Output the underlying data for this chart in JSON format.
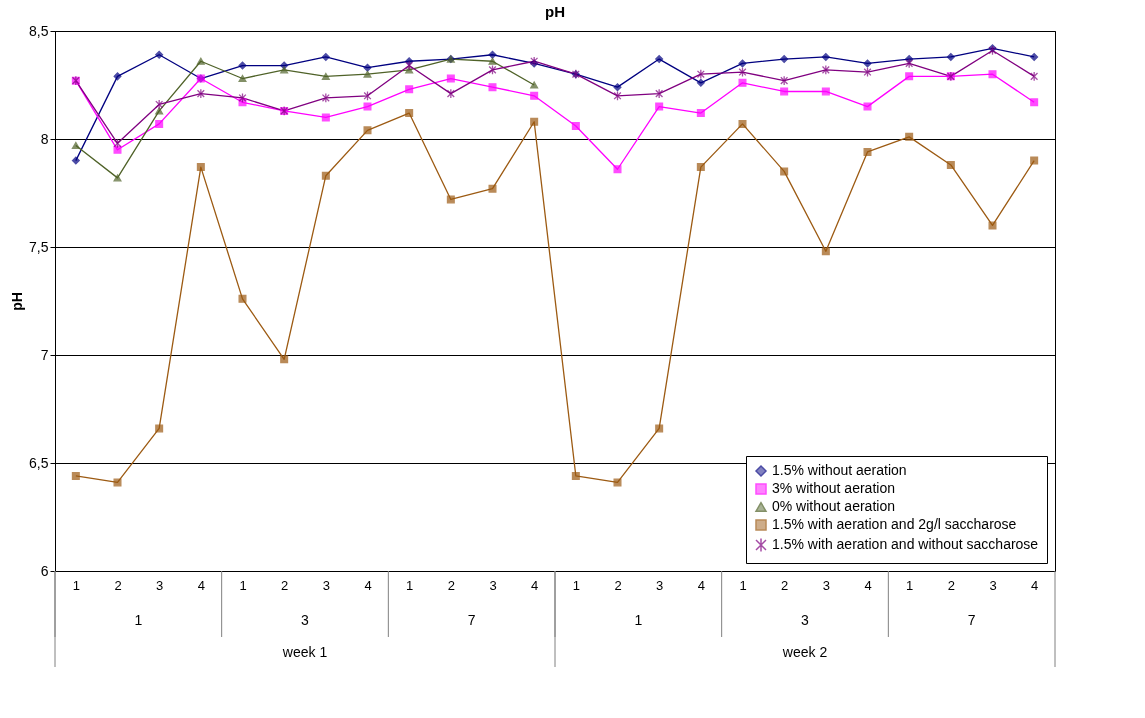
{
  "chart_data": {
    "type": "line",
    "title": "pH",
    "ylabel": "pH",
    "categories": [
      "1",
      "2",
      "3",
      "4",
      "1",
      "2",
      "3",
      "4",
      "1",
      "2",
      "3",
      "4",
      "1",
      "2",
      "3",
      "4",
      "1",
      "2",
      "3",
      "4",
      "1",
      "2",
      "3",
      "4"
    ],
    "annotations": [
      "1",
      "3",
      "7",
      "1",
      "3",
      "7",
      "week 1",
      "week 2"
    ],
    "series": [
      {
        "name": "1.5% without aeration",
        "color": "#000080",
        "marker": "diamond",
        "values": [
          7.9,
          8.29,
          8.39,
          8.28,
          8.34,
          8.34,
          8.38,
          8.33,
          8.36,
          8.37,
          8.39,
          8.35,
          8.3,
          8.24,
          8.37,
          8.26,
          8.35,
          8.37,
          8.38,
          8.35,
          8.37,
          8.38,
          8.42,
          8.38
        ]
      },
      {
        "name": "3% without aeration",
        "color": "#ff00ff",
        "marker": "square",
        "values": [
          8.27,
          7.95,
          8.07,
          8.28,
          8.17,
          8.13,
          8.1,
          8.15,
          8.23,
          8.28,
          8.24,
          8.2,
          8.06,
          7.86,
          8.15,
          8.12,
          8.26,
          8.22,
          8.22,
          8.15,
          8.29,
          8.29,
          8.3,
          8.17
        ]
      },
      {
        "name": "0% without aeration",
        "color": "#4f6228",
        "marker": "triangle",
        "values": [
          7.97,
          7.82,
          8.13,
          8.36,
          8.28,
          8.32,
          8.29,
          8.3,
          8.32,
          8.37,
          8.36,
          8.25,
          null,
          null,
          null,
          null,
          null,
          null,
          null,
          null,
          null,
          null,
          null,
          null
        ]
      },
      {
        "name": "1.5% with aeration and 2g/l saccharose",
        "color": "#9c5a12",
        "marker": "square",
        "values": [
          6.44,
          6.41,
          6.66,
          7.87,
          7.26,
          6.98,
          7.83,
          8.04,
          8.12,
          7.72,
          7.77,
          8.08,
          6.44,
          6.41,
          6.66,
          7.87,
          8.07,
          7.85,
          7.48,
          7.94,
          8.01,
          7.88,
          7.6,
          7.9
        ]
      },
      {
        "name": "1.5% with aeration and without saccharose",
        "color": "#800080",
        "marker": "cross",
        "values": [
          8.27,
          7.98,
          8.16,
          8.21,
          8.19,
          8.13,
          8.19,
          8.2,
          8.34,
          8.21,
          8.32,
          8.36,
          8.3,
          8.2,
          8.21,
          8.3,
          8.31,
          8.27,
          8.32,
          8.31,
          8.35,
          8.29,
          8.41,
          8.29
        ]
      }
    ],
    "ylim": [
      6,
      8.5
    ],
    "yticks": [
      6,
      {
        "value": 6.5,
        "label": "6,5"
      },
      7,
      {
        "value": 7.5,
        "label": "7,5"
      },
      8,
      {
        "value": 8.5,
        "label": "8,5"
      }
    ],
    "grid": "y",
    "legend": "bottom right",
    "line_style": "solid"
  }
}
